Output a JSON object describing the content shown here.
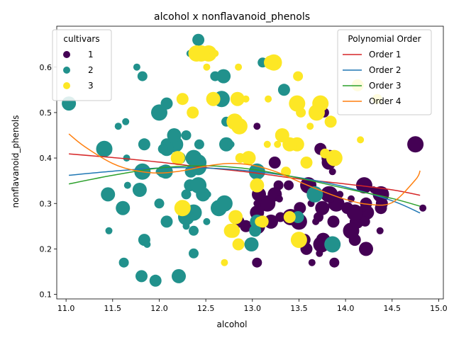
{
  "chart_data": {
    "type": "scatter",
    "title": "alcohol x nonflavanoid_phenols",
    "xlabel": "alcohol",
    "ylabel": "nonflavanoid_phenols",
    "xlim": [
      10.9,
      15.05
    ],
    "ylim": [
      0.09,
      0.69
    ],
    "xticks": [
      "11.0",
      "11.5",
      "12.0",
      "12.5",
      "13.0",
      "13.5",
      "14.0",
      "14.5",
      "15.0"
    ],
    "yticks": [
      "0.1",
      "0.2",
      "0.3",
      "0.4",
      "0.5",
      "0.6"
    ],
    "grid": false,
    "cultivar_legend": {
      "title": "cultivars",
      "placement": "top-left",
      "entries": [
        {
          "label": "1",
          "color": "#440154"
        },
        {
          "label": "2",
          "color": "#21918c"
        },
        {
          "label": "3",
          "color": "#fde725"
        }
      ]
    },
    "fit_legend": {
      "title": "Polynomial Order",
      "placement": "top-right",
      "entries": [
        {
          "label": "Order 1",
          "color": "#d62728"
        },
        {
          "label": "Order 2",
          "color": "#1f77b4"
        },
        {
          "label": "Order 3",
          "color": "#2ca02c"
        },
        {
          "label": "Order 4",
          "color": "#ff7f0e"
        }
      ]
    },
    "series": [
      {
        "name": "1",
        "color": "#440154",
        "points": [
          [
            14.23,
            0.28
          ],
          [
            13.2,
            0.26
          ],
          [
            13.16,
            0.3
          ],
          [
            14.37,
            0.24
          ],
          [
            13.24,
            0.39
          ],
          [
            14.2,
            0.34
          ],
          [
            14.39,
            0.3
          ],
          [
            14.06,
            0.31
          ],
          [
            14.83,
            0.29
          ],
          [
            13.86,
            0.22
          ],
          [
            14.1,
            0.22
          ],
          [
            14.12,
            0.26
          ],
          [
            13.75,
            0.29
          ],
          [
            14.75,
            0.43
          ],
          [
            14.38,
            0.29
          ],
          [
            13.63,
            0.3
          ],
          [
            14.3,
            0.33
          ],
          [
            13.83,
            0.4
          ],
          [
            14.19,
            0.29
          ],
          [
            13.64,
            0.17
          ],
          [
            14.06,
            0.24
          ],
          [
            12.93,
            0.25
          ],
          [
            13.71,
            0.27
          ],
          [
            12.85,
            0.26
          ],
          [
            13.5,
            0.26
          ],
          [
            13.05,
            0.28
          ],
          [
            13.39,
            0.34
          ],
          [
            13.3,
            0.27
          ],
          [
            13.87,
            0.26
          ],
          [
            14.02,
            0.29
          ],
          [
            13.73,
            0.42
          ],
          [
            13.58,
            0.2
          ],
          [
            13.68,
            0.26
          ],
          [
            13.76,
            0.22
          ],
          [
            13.51,
            0.29
          ],
          [
            13.48,
            0.27
          ],
          [
            13.28,
            0.34
          ],
          [
            13.05,
            0.17
          ],
          [
            13.07,
            0.32
          ],
          [
            14.22,
            0.2
          ],
          [
            13.56,
            0.21
          ],
          [
            13.41,
            0.27
          ],
          [
            13.88,
            0.17
          ],
          [
            13.24,
            0.32
          ],
          [
            13.05,
            0.47
          ],
          [
            14.21,
            0.26
          ],
          [
            14.38,
            0.32
          ],
          [
            13.9,
            0.3
          ],
          [
            14.1,
            0.28
          ],
          [
            13.94,
            0.32
          ],
          [
            13.05,
            0.3
          ],
          [
            13.83,
            0.32
          ],
          [
            13.82,
            0.39
          ],
          [
            13.77,
            0.5
          ],
          [
            13.74,
            0.21
          ],
          [
            13.56,
            0.22
          ],
          [
            14.22,
            0.3
          ],
          [
            13.29,
            0.31
          ],
          [
            13.72,
            0.19
          ],
          [
            13.86,
            0.37
          ],
          [
            13.6,
            0.34
          ],
          [
            13.82,
            0.32
          ],
          [
            13.05,
            0.25
          ]
        ]
      },
      {
        "name": "2",
        "color": "#21918c",
        "points": [
          [
            12.37,
            0.28
          ],
          [
            12.33,
            0.34
          ],
          [
            12.64,
            0.29
          ],
          [
            13.67,
            0.32
          ],
          [
            12.37,
            0.4
          ],
          [
            12.17,
            0.43
          ],
          [
            12.37,
            0.38
          ],
          [
            13.11,
            0.61
          ],
          [
            13.34,
            0.55
          ],
          [
            12.21,
            0.14
          ],
          [
            12.29,
            0.45
          ],
          [
            13.86,
            0.21
          ],
          [
            13.49,
            0.27
          ],
          [
            12.99,
            0.21
          ],
          [
            11.96,
            0.13
          ],
          [
            11.66,
            0.34
          ],
          [
            13.03,
            0.24
          ],
          [
            11.84,
            0.22
          ],
          [
            12.33,
            0.63
          ],
          [
            12.7,
            0.3
          ],
          [
            12.0,
            0.3
          ],
          [
            12.72,
            0.48
          ],
          [
            12.08,
            0.52
          ],
          [
            13.05,
            0.26
          ],
          [
            11.84,
            0.43
          ],
          [
            12.67,
            0.53
          ],
          [
            12.16,
            0.45
          ],
          [
            11.65,
            0.4
          ],
          [
            11.64,
            0.48
          ],
          [
            12.08,
            0.43
          ],
          [
            12.08,
            0.26
          ],
          [
            12.0,
            0.37
          ],
          [
            12.69,
            0.58
          ],
          [
            12.29,
            0.27
          ],
          [
            11.62,
            0.17
          ],
          [
            12.47,
            0.32
          ],
          [
            11.81,
            0.14
          ],
          [
            12.29,
            0.25
          ],
          [
            12.37,
            0.19
          ],
          [
            12.29,
            0.32
          ],
          [
            12.08,
            0.42
          ],
          [
            12.6,
            0.58
          ],
          [
            12.34,
            0.37
          ],
          [
            11.82,
            0.37
          ],
          [
            12.51,
            0.26
          ],
          [
            12.42,
            0.38
          ],
          [
            12.25,
            0.29
          ],
          [
            12.72,
            0.43
          ],
          [
            12.22,
            0.4
          ],
          [
            11.61,
            0.29
          ],
          [
            11.46,
            0.24
          ],
          [
            12.52,
            0.32
          ],
          [
            11.76,
            0.6
          ],
          [
            11.41,
            0.42
          ],
          [
            12.08,
            0.37
          ],
          [
            11.03,
            0.52
          ],
          [
            11.82,
            0.58
          ],
          [
            12.42,
            0.34
          ],
          [
            12.77,
            0.43
          ],
          [
            12.0,
            0.5
          ],
          [
            11.45,
            0.32
          ],
          [
            11.56,
            0.47
          ],
          [
            12.42,
            0.39
          ],
          [
            13.05,
            0.37
          ],
          [
            11.87,
            0.21
          ],
          [
            12.07,
            0.37
          ],
          [
            12.43,
            0.43
          ],
          [
            11.79,
            0.33
          ],
          [
            12.37,
            0.24
          ],
          [
            12.04,
            0.42
          ],
          [
            12.42,
            0.66
          ],
          [
            12.37,
            0.27
          ],
          [
            12.04,
            0.37
          ]
        ]
      },
      {
        "name": "3",
        "color": "#fde725",
        "points": [
          [
            12.86,
            0.47
          ],
          [
            12.88,
            0.47
          ],
          [
            12.81,
            0.48
          ],
          [
            12.7,
            0.17
          ],
          [
            12.51,
            0.6
          ],
          [
            12.6,
            0.63
          ],
          [
            12.25,
            0.53
          ],
          [
            12.53,
            0.63
          ],
          [
            13.49,
            0.58
          ],
          [
            12.84,
            0.53
          ],
          [
            12.93,
            0.53
          ],
          [
            13.36,
            0.37
          ],
          [
            13.52,
            0.5
          ],
          [
            13.62,
            0.47
          ],
          [
            12.25,
            0.29
          ],
          [
            13.16,
            0.43
          ],
          [
            13.88,
            0.4
          ],
          [
            12.87,
            0.4
          ],
          [
            13.32,
            0.45
          ],
          [
            13.08,
            0.26
          ],
          [
            13.5,
            0.22
          ],
          [
            12.79,
            0.24
          ],
          [
            13.11,
            0.26
          ],
          [
            13.23,
            0.61
          ],
          [
            12.58,
            0.53
          ],
          [
            13.17,
            0.53
          ],
          [
            13.84,
            0.48
          ],
          [
            12.45,
            0.63
          ],
          [
            14.34,
            0.53
          ],
          [
            13.48,
            0.43
          ],
          [
            12.36,
            0.5
          ],
          [
            13.69,
            0.5
          ],
          [
            12.85,
            0.21
          ],
          [
            12.96,
            0.4
          ],
          [
            13.78,
            0.41
          ],
          [
            13.73,
            0.52
          ],
          [
            13.45,
            0.43
          ],
          [
            12.82,
            0.27
          ],
          [
            13.58,
            0.39
          ],
          [
            13.4,
            0.27
          ],
          [
            13.2,
            0.61
          ],
          [
            12.77,
            0.24
          ],
          [
            14.16,
            0.44
          ],
          [
            13.71,
            0.52
          ],
          [
            13.4,
            0.43
          ],
          [
            13.27,
            0.43
          ],
          [
            13.17,
            0.61
          ],
          [
            14.13,
            0.56
          ],
          [
            12.2,
            0.4
          ],
          [
            12.85,
            0.6
          ],
          [
            13.48,
            0.52
          ],
          [
            13.05,
            0.34
          ],
          [
            12.4,
            0.63
          ]
        ]
      }
    ],
    "fits": [
      {
        "name": "Order 1",
        "color": "#d62728",
        "x": [
          11.03,
          11.5,
          12.0,
          12.5,
          13.0,
          13.5,
          14.0,
          14.5,
          14.8
        ],
        "y": [
          0.409,
          0.401,
          0.391,
          0.379,
          0.368,
          0.354,
          0.343,
          0.33,
          0.318
        ]
      },
      {
        "name": "Order 2",
        "color": "#1f77b4",
        "x": [
          11.03,
          11.5,
          12.0,
          12.5,
          13.0,
          13.5,
          14.0,
          14.5,
          14.8
        ],
        "y": [
          0.362,
          0.371,
          0.378,
          0.378,
          0.371,
          0.357,
          0.336,
          0.306,
          0.279
        ]
      },
      {
        "name": "Order 3",
        "color": "#2ca02c",
        "x": [
          11.03,
          11.5,
          12.0,
          12.5,
          13.0,
          13.5,
          14.0,
          14.5,
          14.8
        ],
        "y": [
          0.343,
          0.362,
          0.378,
          0.383,
          0.375,
          0.356,
          0.333,
          0.311,
          0.294
        ]
      },
      {
        "name": "Order 4",
        "color": "#ff7f0e",
        "x": [
          11.03,
          11.2,
          11.5,
          11.75,
          12.0,
          12.25,
          12.5,
          12.75,
          13.0,
          13.25,
          13.5,
          13.75,
          14.0,
          14.25,
          14.5,
          14.75,
          14.8
        ],
        "y": [
          0.453,
          0.425,
          0.388,
          0.372,
          0.367,
          0.372,
          0.382,
          0.388,
          0.384,
          0.37,
          0.348,
          0.327,
          0.309,
          0.298,
          0.302,
          0.352,
          0.372
        ]
      }
    ]
  }
}
